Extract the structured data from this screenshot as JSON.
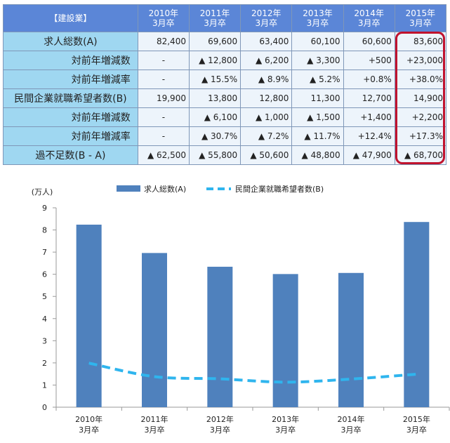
{
  "table": {
    "corner": "【建設業】",
    "headers": [
      [
        "2010年",
        "3月卒"
      ],
      [
        "2011年",
        "3月卒"
      ],
      [
        "2012年",
        "3月卒"
      ],
      [
        "2013年",
        "3月卒"
      ],
      [
        "2014年",
        "3月卒"
      ],
      [
        "2015年",
        "3月卒"
      ]
    ],
    "rows": [
      {
        "label": "求人総数(A)",
        "cells": [
          "82,400",
          "69,600",
          "63,400",
          "60,100",
          "60,600",
          "83,600"
        ]
      },
      {
        "label": "対前年増減数",
        "cells": [
          "-",
          "▲ 12,800",
          "▲ 6,200",
          "▲ 3,300",
          "+500",
          "+23,000"
        ]
      },
      {
        "label": "対前年増減率",
        "cells": [
          "-",
          "▲ 15.5%",
          "▲ 8.9%",
          "▲ 5.2%",
          "+0.8%",
          "+38.0%"
        ]
      },
      {
        "label": "民間企業就職希望者数(B)",
        "cells": [
          "19,900",
          "13,800",
          "12,800",
          "11,300",
          "12,700",
          "14,900"
        ]
      },
      {
        "label": "対前年増減数",
        "cells": [
          "-",
          "▲ 6,100",
          "▲ 1,000",
          "▲ 1,500",
          "+1,400",
          "+2,200"
        ]
      },
      {
        "label": "対前年増減率",
        "cells": [
          "-",
          "▲ 30.7%",
          "▲ 7.2%",
          "▲ 11.7%",
          "+12.4%",
          "+17.3%"
        ]
      },
      {
        "label": "過不足数(B - A)",
        "cells": [
          "▲ 62,500",
          "▲ 55,800",
          "▲ 50,600",
          "▲ 48,800",
          "▲ 47,900",
          "▲ 68,700"
        ]
      }
    ],
    "highlight_color": "#c0132e",
    "header_color": "#5b86d7",
    "label_color": "#9fd7f1"
  },
  "chart_data": {
    "type": "bar",
    "categories": [
      [
        "2010年",
        "3月卒"
      ],
      [
        "2011年",
        "3月卒"
      ],
      [
        "2012年",
        "3月卒"
      ],
      [
        "2013年",
        "3月卒"
      ],
      [
        "2014年",
        "3月卒"
      ],
      [
        "2015年",
        "3月卒"
      ]
    ],
    "series": [
      {
        "name": "求人総数(A)",
        "type": "bar",
        "color": "#4f81bd",
        "values": [
          8.24,
          6.96,
          6.34,
          6.01,
          6.06,
          8.36
        ]
      },
      {
        "name": "民間企業就職希望者数(B)",
        "type": "line",
        "style": "dashed",
        "color": "#2fb5ee",
        "values": [
          1.99,
          1.38,
          1.28,
          1.13,
          1.27,
          1.49
        ]
      }
    ],
    "ylabel": "(万人)",
    "yticks": [
      "0",
      "1",
      "2",
      "3",
      "4",
      "5",
      "6",
      "7",
      "8",
      "9"
    ],
    "ylim": [
      0,
      9
    ],
    "grid": false,
    "legend": "top"
  }
}
